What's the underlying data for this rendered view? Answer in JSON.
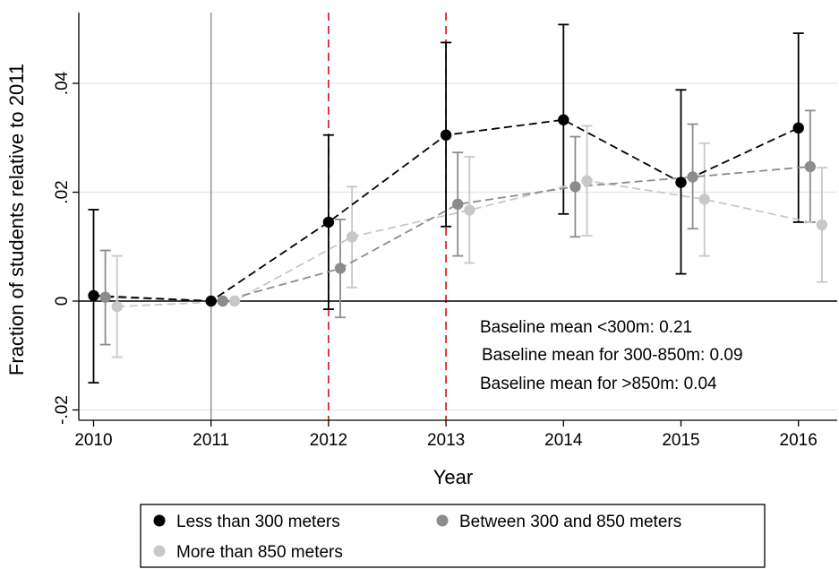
{
  "chart_data": {
    "type": "line",
    "title": "",
    "xlabel": "Year",
    "ylabel": "Fraction of students relative to 2011",
    "x": [
      2010,
      2011,
      2012,
      2013,
      2014,
      2015,
      2016
    ],
    "xlim": [
      2010,
      2016
    ],
    "ylim": [
      -0.022,
      0.053
    ],
    "yticks": [
      -0.02,
      0,
      0.02,
      0.04
    ],
    "ytick_labels": [
      "-.02",
      "0",
      ".02",
      ".04"
    ],
    "xtick_labels": [
      "2010",
      "2011",
      "2012",
      "2013",
      "2014",
      "2015",
      "2016"
    ],
    "grid": true,
    "reference_lines": {
      "solid_gray_at_x": 2011,
      "dashed_red_at_x": [
        2012,
        2013
      ],
      "solid_black_at_y": 0
    },
    "series": [
      {
        "name": "Less than 300 meters",
        "color": "#000000",
        "offset": 0.0,
        "values": [
          0.001,
          0.0,
          0.0145,
          0.0305,
          0.0333,
          0.0218,
          0.0318
        ],
        "ci_low": [
          -0.015,
          0.0,
          -0.0015,
          0.0137,
          0.016,
          0.005,
          0.0145
        ],
        "ci_high": [
          0.0168,
          0.0,
          0.0305,
          0.0475,
          0.0508,
          0.0388,
          0.0492
        ]
      },
      {
        "name": "Between 300 and 850 meters",
        "color": "#8c8c8c",
        "offset": 0.1,
        "values": [
          0.0007,
          0.0,
          0.006,
          0.0178,
          0.021,
          0.0228,
          0.0247
        ],
        "ci_low": [
          -0.008,
          0.0,
          -0.003,
          0.0083,
          0.0118,
          0.0133,
          0.0145
        ],
        "ci_high": [
          0.0093,
          0.0,
          0.015,
          0.0273,
          0.0302,
          0.0325,
          0.035
        ]
      },
      {
        "name": "More than 850 meters",
        "color": "#c8c8c8",
        "offset": 0.2,
        "values": [
          -0.001,
          0.0,
          0.0118,
          0.0167,
          0.0221,
          0.0187,
          0.014
        ],
        "ci_low": [
          -0.0103,
          0.0,
          0.0025,
          0.007,
          0.012,
          0.0083,
          0.0035
        ],
        "ci_high": [
          0.0083,
          0.0,
          0.021,
          0.0265,
          0.0322,
          0.029,
          0.0245
        ]
      }
    ],
    "annotations": [
      "Baseline mean <300m: 0.21",
      "Baseline mean for 300-850m: 0.09",
      "Baseline mean for >850m: 0.04"
    ],
    "legend": {
      "placement": "bottom",
      "entries": [
        "Less than 300 meters",
        "Between 300 and 850 meters",
        "More than 850 meters"
      ]
    }
  }
}
